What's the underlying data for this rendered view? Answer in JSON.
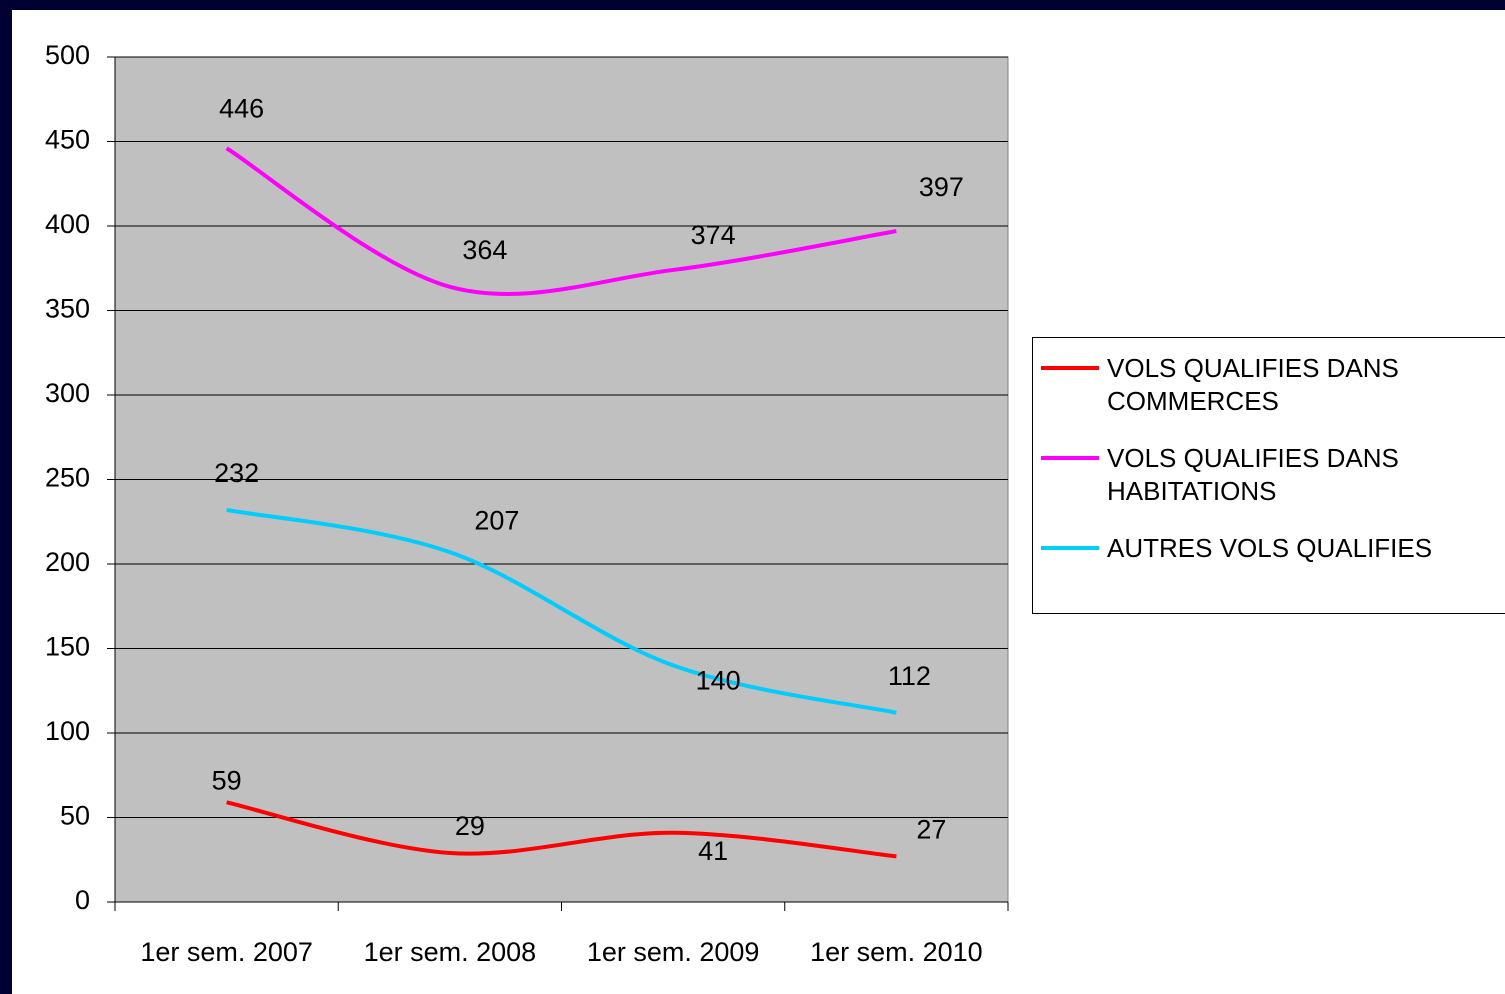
{
  "chart_data": {
    "type": "line",
    "categories": [
      "1er sem. 2007",
      "1er sem. 2008",
      "1er sem. 2009",
      "1er sem. 2010"
    ],
    "series": [
      {
        "name": "VOLS QUALIFIES DANS COMMERCES",
        "color": "#ff0000",
        "values": [
          59,
          29,
          41,
          27
        ]
      },
      {
        "name": "VOLS QUALIFIES DANS HABITATIONS",
        "color": "#ff00ff",
        "values": [
          446,
          364,
          374,
          397
        ]
      },
      {
        "name": "AUTRES VOLS QUALIFIES",
        "color": "#00ccff",
        "values": [
          232,
          207,
          140,
          112
        ]
      }
    ],
    "ylim": [
      0,
      500
    ],
    "yticks": [
      0,
      50,
      100,
      150,
      200,
      250,
      300,
      350,
      400,
      450,
      500
    ],
    "grid": true,
    "legend": "right",
    "plot_background": "#c0c0c0"
  }
}
